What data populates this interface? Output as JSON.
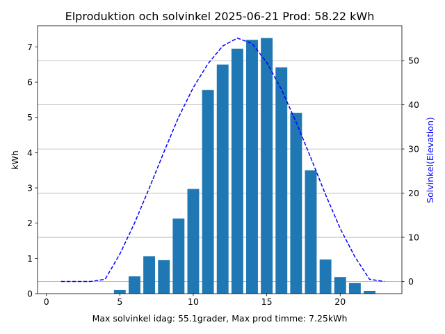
{
  "chart_data": {
    "type": "bar+line",
    "title": "Elproduktion och solvinkel 2025-06-21 Prod: 58.22 kWh",
    "xlabel": "Max solvinkel idag: 55.1grader, Max prod timme: 7.25kWh",
    "ylabel": "kWh",
    "y2label": "Solvinkel(Elevation)",
    "xlim": [
      -0.6,
      24.2
    ],
    "ylim": [
      0,
      7.6
    ],
    "y2lim": [
      -2.75,
      57.9
    ],
    "xticks": [
      0,
      5,
      10,
      15,
      20
    ],
    "yticks": [
      0,
      1,
      2,
      3,
      4,
      5,
      6,
      7
    ],
    "y2ticks": [
      0,
      10,
      20,
      30,
      40,
      50
    ],
    "grid": "horizontal, right axis",
    "series": [
      {
        "type": "bar",
        "color": "#1f77b4",
        "x": [
          5,
          6,
          7,
          8,
          9,
          10,
          11,
          12,
          13,
          14,
          15,
          16,
          17,
          18,
          19,
          20,
          21,
          22
        ],
        "values": [
          0.1,
          0.49,
          1.06,
          0.95,
          2.13,
          2.97,
          5.78,
          6.5,
          6.95,
          7.2,
          7.25,
          6.42,
          5.13,
          3.5,
          0.97,
          0.47,
          0.3,
          0.08
        ]
      },
      {
        "type": "line",
        "axis": "right",
        "style": "dashed",
        "color": "#0000ff",
        "x": [
          1,
          2,
          3,
          4,
          5,
          6,
          7,
          8,
          9,
          10,
          11,
          12,
          13,
          14,
          15,
          16,
          17,
          18,
          19,
          20,
          21,
          22,
          23
        ],
        "values": [
          0,
          0,
          0,
          0.5,
          6.2,
          13.2,
          21.1,
          29.3,
          37.2,
          43.9,
          49.3,
          53.3,
          55.1,
          53.9,
          49.6,
          43.5,
          36.1,
          28,
          19.7,
          12,
          5.6,
          0.5,
          0
        ]
      }
    ]
  }
}
